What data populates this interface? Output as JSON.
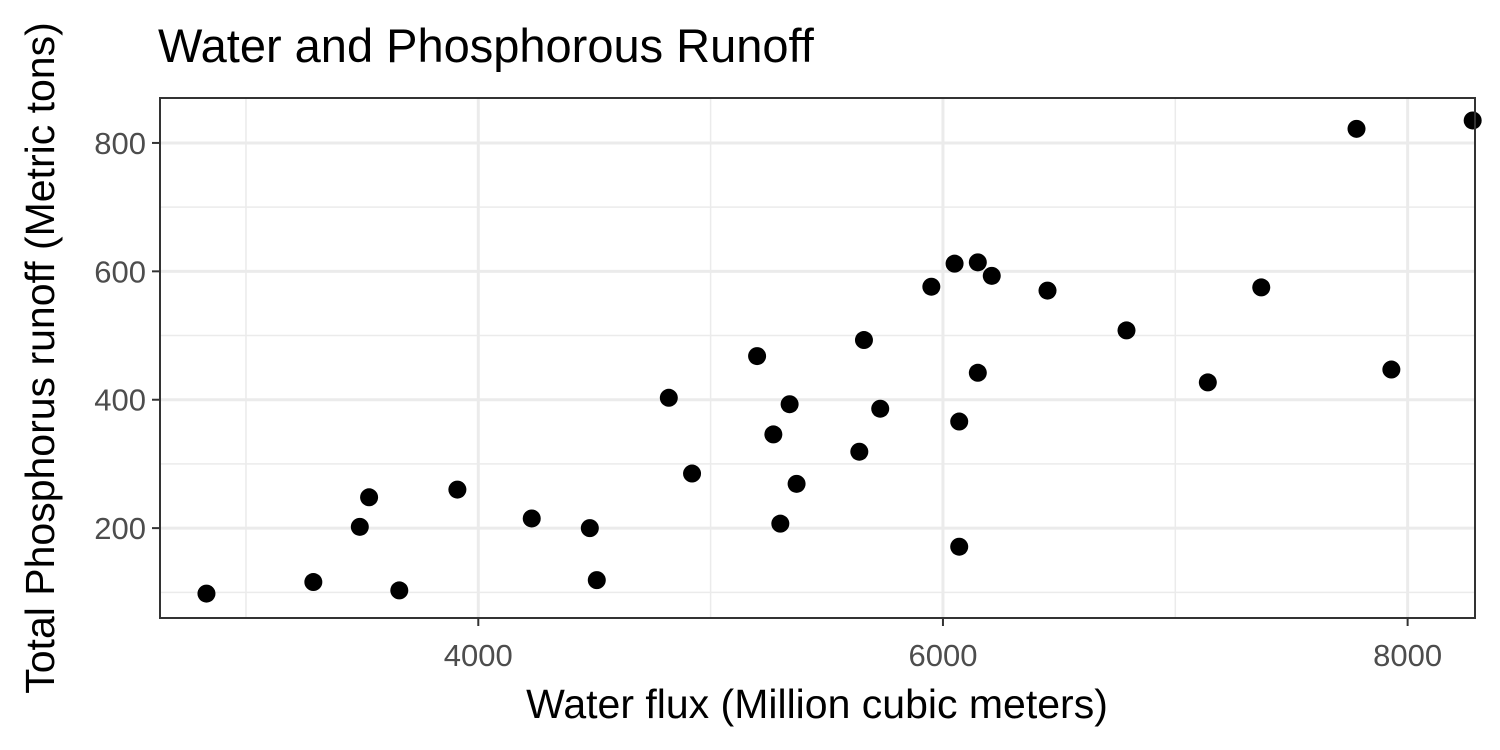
{
  "chart_data": {
    "type": "scatter",
    "title": "Water and Phosphorous Runoff",
    "xlabel": "Water flux (Million cubic meters)",
    "ylabel": "Total Phosphorus runoff (Metric tons)",
    "xlim": [
      2630,
      8290
    ],
    "ylim": [
      60,
      870
    ],
    "x_ticks": [
      4000,
      6000,
      8000
    ],
    "y_ticks": [
      200,
      400,
      600,
      800
    ],
    "x_tick_labels": [
      "4000",
      "6000",
      "8000"
    ],
    "y_tick_labels": [
      "200",
      "400",
      "600",
      "800"
    ],
    "grid": true,
    "legend": "none",
    "point_color": "#000000",
    "points": [
      {
        "x": 2830,
        "y": 98
      },
      {
        "x": 3290,
        "y": 116
      },
      {
        "x": 3490,
        "y": 202
      },
      {
        "x": 3530,
        "y": 248
      },
      {
        "x": 3660,
        "y": 103
      },
      {
        "x": 3910,
        "y": 260
      },
      {
        "x": 4230,
        "y": 215
      },
      {
        "x": 4480,
        "y": 200
      },
      {
        "x": 4510,
        "y": 119
      },
      {
        "x": 4820,
        "y": 403
      },
      {
        "x": 4920,
        "y": 285
      },
      {
        "x": 5200,
        "y": 468
      },
      {
        "x": 5270,
        "y": 346
      },
      {
        "x": 5300,
        "y": 207
      },
      {
        "x": 5340,
        "y": 393
      },
      {
        "x": 5370,
        "y": 269
      },
      {
        "x": 5640,
        "y": 319
      },
      {
        "x": 5660,
        "y": 493
      },
      {
        "x": 5730,
        "y": 386
      },
      {
        "x": 5950,
        "y": 576
      },
      {
        "x": 6050,
        "y": 612
      },
      {
        "x": 6070,
        "y": 366
      },
      {
        "x": 6070,
        "y": 171
      },
      {
        "x": 6150,
        "y": 614
      },
      {
        "x": 6150,
        "y": 442
      },
      {
        "x": 6210,
        "y": 593
      },
      {
        "x": 6450,
        "y": 570
      },
      {
        "x": 6790,
        "y": 508
      },
      {
        "x": 7140,
        "y": 427
      },
      {
        "x": 7370,
        "y": 575
      },
      {
        "x": 7780,
        "y": 822
      },
      {
        "x": 7930,
        "y": 447
      },
      {
        "x": 8280,
        "y": 835
      }
    ]
  }
}
